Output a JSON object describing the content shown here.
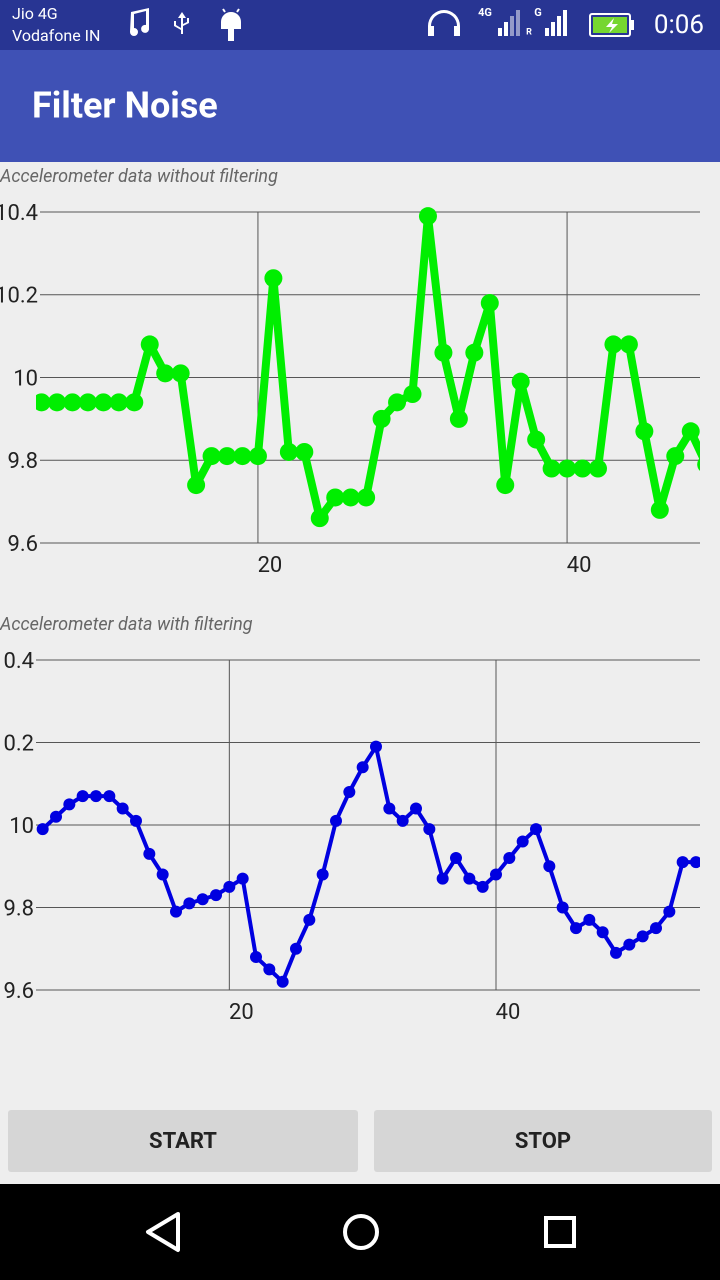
{
  "status_bar": {
    "carrier_1": "Jio 4G",
    "carrier_2": "Vodafone IN",
    "network_1": "4G",
    "network_2": "G",
    "roaming": "R",
    "time": "0:06"
  },
  "app_bar": {
    "title": "Filter Noise"
  },
  "chart_data": [
    {
      "type": "line",
      "title": "Accelerometer data without filtering",
      "x": [
        6,
        7,
        8,
        9,
        10,
        11,
        12,
        13,
        14,
        15,
        16,
        17,
        18,
        19,
        20,
        21,
        22,
        23,
        24,
        25,
        26,
        27,
        28,
        29,
        30,
        31,
        32,
        33,
        34,
        35,
        36,
        37,
        38,
        39,
        40,
        41,
        42,
        43,
        44,
        45,
        46,
        47,
        48,
        49
      ],
      "series": [
        {
          "name": "Accelerometer data without filtering",
          "color": "#00ee00",
          "values": [
            9.94,
            9.94,
            9.94,
            9.94,
            9.94,
            9.94,
            9.94,
            10.08,
            10.01,
            10.01,
            9.74,
            9.81,
            9.81,
            9.81,
            9.81,
            10.24,
            9.82,
            9.82,
            9.66,
            9.71,
            9.71,
            9.71,
            9.9,
            9.94,
            9.96,
            10.39,
            10.06,
            9.9,
            10.06,
            10.18,
            9.74,
            9.99,
            9.85,
            9.78,
            9.78,
            9.78,
            9.78,
            10.08,
            10.08,
            9.87,
            9.68,
            9.81,
            9.87,
            9.79
          ]
        }
      ],
      "xlim": [
        5.9,
        48.6
      ],
      "ylim": [
        9.6,
        10.4
      ],
      "xticks": [
        20,
        40
      ],
      "yticks": [
        9.6,
        9.8,
        10,
        10.2,
        10.4
      ],
      "grid": true
    },
    {
      "type": "line",
      "title": "Accelerometer data with filtering",
      "x": [
        6,
        7,
        8,
        9,
        10,
        11,
        12,
        13,
        14,
        15,
        16,
        17,
        18,
        19,
        20,
        21,
        22,
        23,
        24,
        25,
        26,
        27,
        28,
        29,
        30,
        31,
        32,
        33,
        34,
        35,
        36,
        37,
        38,
        39,
        40,
        41,
        42,
        43,
        44,
        45,
        46,
        47,
        48,
        49,
        50,
        51,
        52,
        53,
        54,
        55
      ],
      "series": [
        {
          "name": "Accelerometer data with filtering",
          "color": "#0000e0",
          "values": [
            9.99,
            10.02,
            10.05,
            10.07,
            10.07,
            10.07,
            10.04,
            10.01,
            9.93,
            9.88,
            9.79,
            9.81,
            9.82,
            9.83,
            9.85,
            9.87,
            9.68,
            9.65,
            9.62,
            9.7,
            9.77,
            9.88,
            10.01,
            10.08,
            10.14,
            10.19,
            10.04,
            10.01,
            10.04,
            9.99,
            9.87,
            9.92,
            9.87,
            9.85,
            9.88,
            9.92,
            9.96,
            9.99,
            9.9,
            9.8,
            9.75,
            9.77,
            9.74,
            9.69,
            9.71,
            9.73,
            9.75,
            9.79,
            9.91,
            9.91
          ]
        }
      ],
      "xlim": [
        5.5,
        55.3
      ],
      "ylim": [
        9.6,
        10.4
      ],
      "xticks": [
        20,
        40
      ],
      "yticks": [
        9.6,
        9.8,
        10,
        10.2,
        10.4
      ],
      "grid": true
    }
  ],
  "buttons": {
    "start": "START",
    "stop": "STOP"
  }
}
